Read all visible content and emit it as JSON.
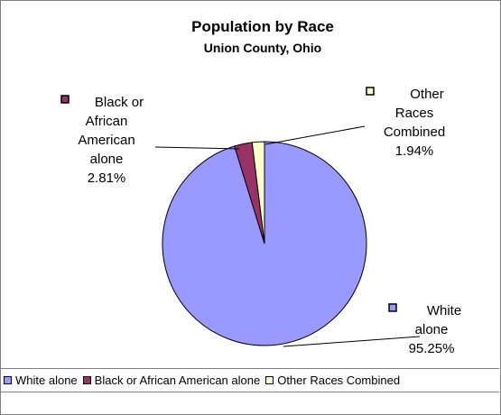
{
  "chart_data": {
    "type": "pie",
    "title": "Population by Race",
    "subtitle": "Union County, Ohio",
    "slices": [
      {
        "label": "White alone",
        "label_lines": [
          "White",
          "alone"
        ],
        "value": 95.25,
        "value_text": "95.25%",
        "color": "#9999ff"
      },
      {
        "label": "Black or African American alone",
        "label_lines": [
          "Black or",
          "African",
          "American",
          "alone"
        ],
        "value": 2.81,
        "value_text": "2.81%",
        "color": "#993366"
      },
      {
        "label": "Other Races Combined",
        "label_lines": [
          "Other",
          "Races",
          "Combined"
        ],
        "value": 1.94,
        "value_text": "1.94%",
        "color": "#ffffcc"
      }
    ],
    "legend": [
      "White alone",
      "Black or African American alone",
      "Other Races Combined"
    ],
    "legend_position": "bottom"
  }
}
